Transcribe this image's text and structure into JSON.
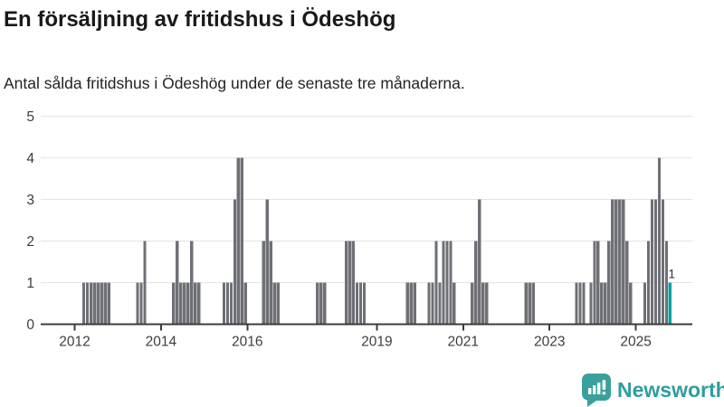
{
  "header": {
    "title": "En försäljning av fritidshus i Ödeshög",
    "subtitle": "Antal sålda fritidshus i Ödeshög under de senaste tre månaderna."
  },
  "chart_data": {
    "type": "bar",
    "title": "En försäljning av fritidshus i Ödeshög",
    "subtitle": "Antal sålda fritidshus i Ödeshög under de senaste tre månaderna.",
    "xlabel": "",
    "ylabel": "",
    "ylim": [
      0,
      5
    ],
    "yticks": [
      0,
      1,
      2,
      3,
      4,
      5
    ],
    "xticks": [
      2012,
      2014,
      2016,
      2019,
      2021,
      2023,
      2025
    ],
    "grid": true,
    "legend": "none",
    "points": [
      [
        "2012-03",
        1
      ],
      [
        "2012-04",
        1
      ],
      [
        "2012-05",
        1
      ],
      [
        "2012-06",
        1
      ],
      [
        "2012-07",
        1
      ],
      [
        "2012-08",
        1
      ],
      [
        "2012-09",
        1
      ],
      [
        "2012-10",
        1
      ],
      [
        "2013-06",
        1
      ],
      [
        "2013-07",
        1
      ],
      [
        "2013-08",
        2
      ],
      [
        "2014-04",
        1
      ],
      [
        "2014-05",
        2
      ],
      [
        "2014-06",
        1
      ],
      [
        "2014-07",
        1
      ],
      [
        "2014-08",
        1
      ],
      [
        "2014-09",
        2
      ],
      [
        "2014-10",
        1
      ],
      [
        "2014-11",
        1
      ],
      [
        "2015-06",
        1
      ],
      [
        "2015-07",
        1
      ],
      [
        "2015-08",
        1
      ],
      [
        "2015-09",
        3
      ],
      [
        "2015-10",
        4
      ],
      [
        "2015-11",
        4
      ],
      [
        "2015-12",
        1
      ],
      [
        "2016-05",
        2
      ],
      [
        "2016-06",
        3
      ],
      [
        "2016-07",
        2
      ],
      [
        "2016-08",
        1
      ],
      [
        "2016-09",
        1
      ],
      [
        "2017-08",
        1
      ],
      [
        "2017-09",
        1
      ],
      [
        "2017-10",
        1
      ],
      [
        "2018-04",
        2
      ],
      [
        "2018-05",
        2
      ],
      [
        "2018-06",
        2
      ],
      [
        "2018-07",
        1
      ],
      [
        "2018-08",
        1
      ],
      [
        "2018-09",
        1
      ],
      [
        "2019-09",
        1
      ],
      [
        "2019-10",
        1
      ],
      [
        "2019-11",
        1
      ],
      [
        "2020-03",
        1
      ],
      [
        "2020-04",
        1
      ],
      [
        "2020-05",
        2
      ],
      [
        "2020-06",
        1
      ],
      [
        "2020-07",
        2
      ],
      [
        "2020-08",
        2
      ],
      [
        "2020-09",
        2
      ],
      [
        "2020-10",
        1
      ],
      [
        "2021-03",
        1
      ],
      [
        "2021-04",
        2
      ],
      [
        "2021-05",
        3
      ],
      [
        "2021-06",
        1
      ],
      [
        "2021-07",
        1
      ],
      [
        "2022-06",
        1
      ],
      [
        "2022-07",
        1
      ],
      [
        "2022-08",
        1
      ],
      [
        "2023-08",
        1
      ],
      [
        "2023-09",
        1
      ],
      [
        "2023-10",
        1
      ],
      [
        "2023-12",
        1
      ],
      [
        "2024-01",
        2
      ],
      [
        "2024-02",
        2
      ],
      [
        "2024-03",
        1
      ],
      [
        "2024-04",
        1
      ],
      [
        "2024-05",
        2
      ],
      [
        "2024-06",
        3
      ],
      [
        "2024-07",
        3
      ],
      [
        "2024-08",
        3
      ],
      [
        "2024-09",
        3
      ],
      [
        "2024-10",
        2
      ],
      [
        "2024-11",
        1
      ],
      [
        "2025-03",
        1
      ],
      [
        "2025-04",
        2
      ],
      [
        "2025-05",
        3
      ],
      [
        "2025-06",
        3
      ],
      [
        "2025-07",
        4
      ],
      [
        "2025-08",
        3
      ],
      [
        "2025-09",
        2
      ],
      [
        "2025-10",
        1
      ]
    ],
    "highlight": {
      "month": "2025-10",
      "value": 1,
      "label": "1"
    },
    "colors": {
      "bar": "#6e7076",
      "highlight": "#00a2a2",
      "grid": "#e4e4e4",
      "axis": "#3c3c3c",
      "tick_label": "#3d3d3d",
      "value_label": "#2f2f2f"
    }
  },
  "footer": {
    "brand": "Newsworthy",
    "brand_color": "#2f9d9d"
  }
}
